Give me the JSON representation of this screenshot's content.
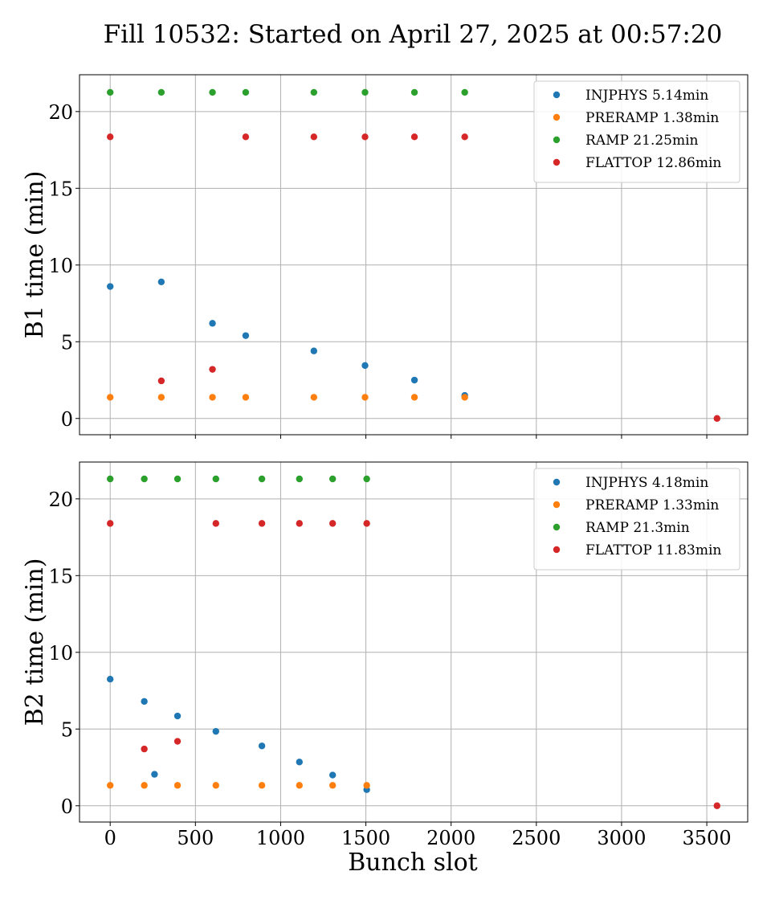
{
  "chart_data": {
    "type": "scatter",
    "title": "Fill 10532: Started on April 27, 2025 at 00:57:20",
    "xlabel": "Bunch slot",
    "xlim": [
      -180,
      3740
    ],
    "xticks": [
      0,
      500,
      1000,
      1500,
      2000,
      2500,
      3000,
      3500
    ],
    "grid": true,
    "legend_position": "top-right",
    "panels": [
      {
        "ylabel": "B1 time (min)",
        "ylim": [
          -1.06,
          22.4
        ],
        "yticks": [
          0,
          5,
          10,
          15,
          20
        ],
        "series": [
          {
            "name": "INJPHYS 5.14min",
            "color": "#1f77b4",
            "x": [
              0,
              300,
              600,
              795,
              1195,
              1495,
              1785,
              2080
            ],
            "y": [
              8.6,
              8.9,
              6.2,
              5.4,
              4.4,
              3.45,
              2.5,
              1.5
            ]
          },
          {
            "name": "PRERAMP 1.38min",
            "color": "#ff7f0e",
            "x": [
              0,
              300,
              600,
              795,
              1195,
              1495,
              1785,
              2080
            ],
            "y": [
              1.38,
              1.38,
              1.38,
              1.38,
              1.38,
              1.38,
              1.38,
              1.38
            ]
          },
          {
            "name": "RAMP 21.25min",
            "color": "#2ca02c",
            "x": [
              0,
              300,
              600,
              795,
              1195,
              1495,
              1785,
              2080
            ],
            "y": [
              21.25,
              21.25,
              21.25,
              21.25,
              21.25,
              21.25,
              21.25,
              21.25
            ]
          },
          {
            "name": "FLATTOP 12.86min",
            "color": "#d62728",
            "x": [
              0,
              300,
              600,
              795,
              1195,
              1495,
              1785,
              2080,
              3560
            ],
            "y": [
              18.35,
              2.45,
              3.2,
              18.35,
              18.35,
              18.35,
              18.35,
              18.35,
              0
            ]
          }
        ]
      },
      {
        "ylabel": "B2 time (min)",
        "ylim": [
          -1.06,
          22.4
        ],
        "yticks": [
          0,
          5,
          10,
          15,
          20
        ],
        "series": [
          {
            "name": "INJPHYS 4.18min",
            "color": "#1f77b4",
            "x": [
              0,
              200,
              260,
              395,
              620,
              890,
              1110,
              1305,
              1505
            ],
            "y": [
              8.25,
              6.8,
              2.05,
              5.85,
              4.85,
              3.9,
              2.85,
              2.0,
              1.05
            ]
          },
          {
            "name": "PRERAMP 1.33min",
            "color": "#ff7f0e",
            "x": [
              0,
              200,
              395,
              620,
              890,
              1110,
              1305,
              1505
            ],
            "y": [
              1.33,
              1.33,
              1.33,
              1.33,
              1.33,
              1.33,
              1.33,
              1.33
            ]
          },
          {
            "name": "RAMP 21.3min",
            "color": "#2ca02c",
            "x": [
              0,
              200,
              395,
              620,
              890,
              1110,
              1305,
              1505
            ],
            "y": [
              21.3,
              21.3,
              21.3,
              21.3,
              21.3,
              21.3,
              21.3,
              21.3
            ]
          },
          {
            "name": "FLATTOP 11.83min",
            "color": "#d62728",
            "x": [
              0,
              200,
              395,
              620,
              890,
              1110,
              1305,
              1505,
              3560
            ],
            "y": [
              18.4,
              3.7,
              4.2,
              18.4,
              18.4,
              18.4,
              18.4,
              18.4,
              0
            ]
          }
        ]
      }
    ]
  }
}
